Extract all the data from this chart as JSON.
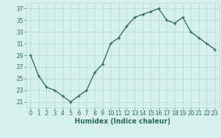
{
  "x": [
    0,
    1,
    2,
    3,
    4,
    5,
    6,
    7,
    8,
    9,
    10,
    11,
    12,
    13,
    14,
    15,
    16,
    17,
    18,
    19,
    20,
    21,
    22,
    23
  ],
  "y": [
    29,
    25.5,
    23.5,
    23,
    22,
    21,
    22,
    23,
    26,
    27.5,
    31,
    32,
    34,
    35.5,
    36,
    36.5,
    37,
    35,
    34.5,
    35.5,
    33,
    32,
    31,
    30
  ],
  "line_color": "#2e6b5e",
  "marker": "+",
  "bg_color": "#d6f0ef",
  "grid_color": "#b8dbd8",
  "xlabel": "Humidex (Indice chaleur)",
  "xlim": [
    -0.5,
    23.5
  ],
  "ylim": [
    20,
    38
  ],
  "yticks": [
    21,
    23,
    25,
    27,
    29,
    31,
    33,
    35,
    37
  ],
  "xticks": [
    0,
    1,
    2,
    3,
    4,
    5,
    6,
    7,
    8,
    9,
    10,
    11,
    12,
    13,
    14,
    15,
    16,
    17,
    18,
    19,
    20,
    21,
    22,
    23
  ],
  "tick_color": "#2e6b5e",
  "label_color": "#2e6b5e",
  "xlabel_fontsize": 7,
  "tick_fontsize": 6,
  "linewidth": 1.0,
  "markersize": 3.5,
  "markeredgewidth": 1.0
}
